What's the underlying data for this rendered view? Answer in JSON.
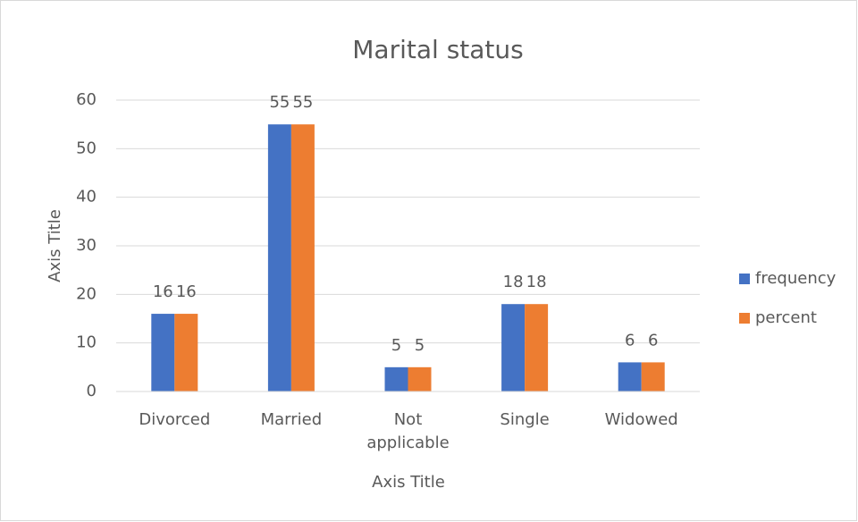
{
  "chart_data": {
    "type": "bar",
    "title": "Marital status",
    "x_label": "Axis Title",
    "y_label": "Axis Title",
    "categories": [
      "Divorced",
      "Married",
      "Not applicable",
      "Single",
      "Widowed"
    ],
    "series": [
      {
        "name": "frequency",
        "color": "#4472c4",
        "values": [
          16,
          55,
          5,
          18,
          6
        ]
      },
      {
        "name": "percent",
        "color": "#ed7d31",
        "values": [
          16,
          55,
          5,
          18,
          6
        ]
      }
    ],
    "ylim": [
      0,
      60
    ],
    "yticks": [
      0,
      10,
      20,
      30,
      40,
      50,
      60
    ],
    "grid": true,
    "legend": "right"
  }
}
